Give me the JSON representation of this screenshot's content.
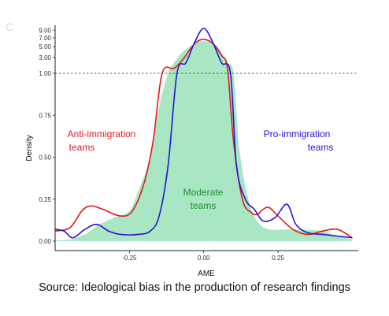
{
  "panel_label": "C",
  "caption": "Source: Ideological bias in the production of research findings",
  "colors": {
    "anti": "#e0191c",
    "pro": "#2a14cc",
    "moderate_fill": "#a8e6c4",
    "moderate_text": "#1e8f2e"
  },
  "chart_data": {
    "type": "area",
    "xlabel": "AME",
    "ylabel": "Density",
    "x_ticks": [
      "-0.25",
      "0.00",
      "0.25"
    ],
    "x_tick_values": [
      -0.25,
      0,
      0.25
    ],
    "xlim": [
      -0.5,
      0.52
    ],
    "y_ticks_lower": [
      "0.00",
      "0.25",
      "0.50",
      "0.75",
      "1.00"
    ],
    "y_ticks_upper": [
      "3.00",
      "5.00",
      "7.00",
      "9.00"
    ],
    "y_axis_note": "Lower segment linear 0–1; upper segment compressed 1–9.5 (above dashed line at 1.00)",
    "reference_line": 1.0,
    "annotations": {
      "anti": [
        "Anti-immigration",
        "teams"
      ],
      "pro": [
        "Pro-immigration",
        "teams"
      ],
      "moderate": [
        "Moderate",
        "teams"
      ]
    },
    "series": [
      {
        "key": "moderate",
        "style": "filled area",
        "points": [
          [
            -0.5,
            0.005
          ],
          [
            -0.45,
            0.01
          ],
          [
            -0.4,
            0.04
          ],
          [
            -0.35,
            0.1
          ],
          [
            -0.3,
            0.14
          ],
          [
            -0.25,
            0.18
          ],
          [
            -0.22,
            0.3
          ],
          [
            -0.18,
            0.5
          ],
          [
            -0.15,
            0.8
          ],
          [
            -0.12,
            1.0
          ],
          [
            -0.1,
            2.2
          ],
          [
            -0.07,
            4.0
          ],
          [
            -0.04,
            5.3
          ],
          [
            -0.02,
            6.1
          ],
          [
            0.0,
            6.2
          ],
          [
            0.02,
            6.0
          ],
          [
            0.05,
            4.8
          ],
          [
            0.08,
            2.2
          ],
          [
            0.1,
            1.0
          ],
          [
            0.12,
            0.55
          ],
          [
            0.15,
            0.25
          ],
          [
            0.18,
            0.12
          ],
          [
            0.22,
            0.07
          ],
          [
            0.3,
            0.07
          ],
          [
            0.4,
            0.06
          ],
          [
            0.45,
            0.03
          ],
          [
            0.5,
            0.01
          ]
        ]
      },
      {
        "key": "anti",
        "style": "line",
        "points": [
          [
            -0.5,
            0.06
          ],
          [
            -0.45,
            0.08
          ],
          [
            -0.41,
            0.18
          ],
          [
            -0.38,
            0.21
          ],
          [
            -0.34,
            0.19
          ],
          [
            -0.28,
            0.15
          ],
          [
            -0.24,
            0.18
          ],
          [
            -0.2,
            0.35
          ],
          [
            -0.17,
            0.6
          ],
          [
            -0.14,
            1.0
          ],
          [
            -0.1,
            1.5
          ],
          [
            -0.07,
            2.7
          ],
          [
            -0.03,
            5.7
          ],
          [
            0.0,
            6.6
          ],
          [
            0.03,
            5.7
          ],
          [
            0.06,
            3.3
          ],
          [
            0.08,
            1.5
          ],
          [
            0.1,
            0.6
          ],
          [
            0.13,
            0.25
          ],
          [
            0.16,
            0.17
          ],
          [
            0.18,
            0.16
          ],
          [
            0.2,
            0.19
          ],
          [
            0.22,
            0.2
          ],
          [
            0.25,
            0.15
          ],
          [
            0.3,
            0.07
          ],
          [
            0.35,
            0.04
          ],
          [
            0.4,
            0.06
          ],
          [
            0.45,
            0.07
          ],
          [
            0.5,
            0.02
          ]
        ]
      },
      {
        "key": "pro",
        "style": "line",
        "points": [
          [
            -0.5,
            0.07
          ],
          [
            -0.47,
            0.06
          ],
          [
            -0.44,
            0.02
          ],
          [
            -0.4,
            0.07
          ],
          [
            -0.36,
            0.1
          ],
          [
            -0.32,
            0.06
          ],
          [
            -0.28,
            0.04
          ],
          [
            -0.22,
            0.04
          ],
          [
            -0.18,
            0.06
          ],
          [
            -0.15,
            0.15
          ],
          [
            -0.12,
            0.45
          ],
          [
            -0.09,
            1.0
          ],
          [
            -0.06,
            2.2
          ],
          [
            -0.03,
            6.0
          ],
          [
            0.0,
            9.5
          ],
          [
            0.03,
            6.0
          ],
          [
            0.06,
            2.2
          ],
          [
            0.09,
            1.0
          ],
          [
            0.11,
            0.45
          ],
          [
            0.14,
            0.25
          ],
          [
            0.17,
            0.19
          ],
          [
            0.2,
            0.12
          ],
          [
            0.24,
            0.14
          ],
          [
            0.28,
            0.22
          ],
          [
            0.31,
            0.1
          ],
          [
            0.35,
            0.05
          ],
          [
            0.4,
            0.04
          ],
          [
            0.45,
            0.03
          ],
          [
            0.5,
            0.02
          ]
        ]
      }
    ]
  }
}
